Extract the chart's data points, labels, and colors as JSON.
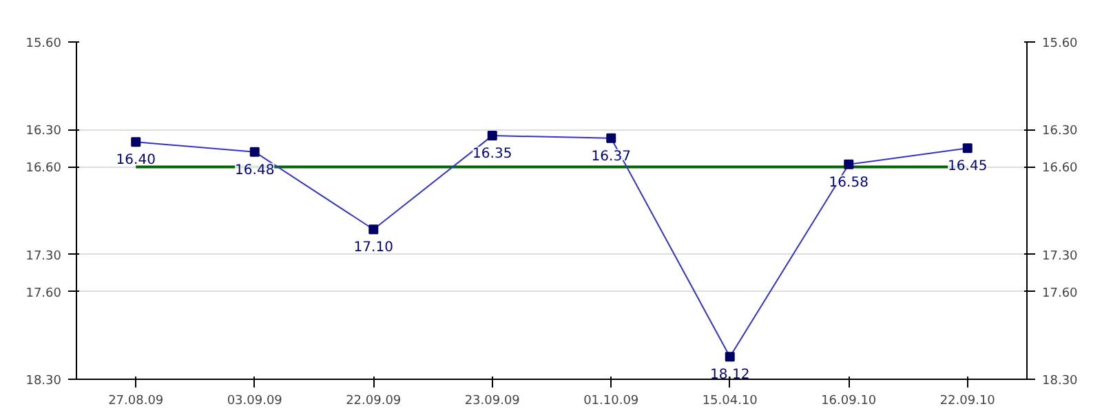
{
  "chart_data": {
    "type": "line",
    "categories": [
      "27.08.09",
      "03.09.09",
      "22.09.09",
      "23.09.09",
      "01.10.09",
      "15.04.10",
      "16.09.10",
      "22.09.10"
    ],
    "series": [
      {
        "color": "#3333cc",
        "values": [
          16.4,
          16.48,
          17.1,
          16.35,
          16.37,
          18.12,
          16.58,
          16.45
        ],
        "value_labels": [
          "16.40",
          "16.48",
          "17.10",
          "16.35",
          "16.37",
          "18.12",
          "16.58",
          "16.45"
        ]
      }
    ],
    "marker": "square",
    "line_style": "solid",
    "ylim": [
      18.3,
      15.6
    ],
    "yticks": [
      {
        "value": 15.6,
        "label": "15.60"
      },
      {
        "value": 16.3,
        "label": "16.30"
      },
      {
        "value": 16.6,
        "label": "16.60"
      },
      {
        "value": 17.3,
        "label": "17.30"
      },
      {
        "value": 17.6,
        "label": "17.60"
      },
      {
        "value": 18.3,
        "label": "18.30"
      }
    ],
    "y2lim": [
      18.3,
      15.6
    ],
    "y2ticks": [
      {
        "value": 15.6,
        "label": "15.60"
      },
      {
        "value": 16.3,
        "label": "16.30"
      },
      {
        "value": 16.6,
        "label": "16.60"
      },
      {
        "value": 17.3,
        "label": "17.30"
      },
      {
        "value": 17.6,
        "label": "17.60"
      },
      {
        "value": 18.3,
        "label": "18.30"
      }
    ],
    "ref_lines": [
      {
        "axis": "y",
        "value": 16.6,
        "color": "#006600"
      }
    ],
    "grid": "y"
  }
}
